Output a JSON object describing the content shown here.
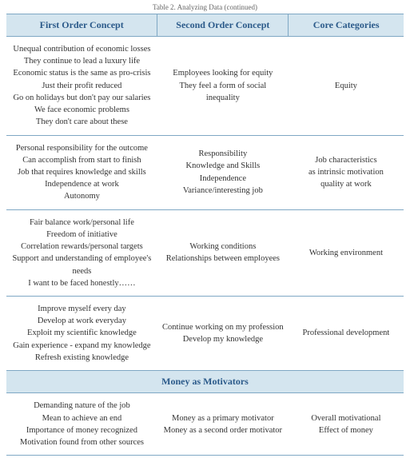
{
  "caption": "Table 2. Analyzing Data (continued)",
  "headers": [
    "First Order Concept",
    "Second Order Concept",
    "Core Categories"
  ],
  "rows": [
    {
      "c1": [
        "Unequal contribution of economic losses",
        "They continue to lead a luxury life",
        "Economic status is the same as pro-crisis",
        "Just their profit reduced",
        "Go on holidays but don't pay our salaries",
        "We face economic problems",
        "They don't care about these"
      ],
      "c2": [
        "Employees looking for equity",
        "They feel a form of social inequality"
      ],
      "c3": [
        "Equity"
      ]
    },
    {
      "c1": [
        "Personal responsibility for the outcome",
        "Can accomplish from start to finish",
        "Job that requires knowledge and skills",
        "Independence at work",
        "Autonomy"
      ],
      "c2": [
        "Responsibility",
        "Knowledge and Skills",
        "Independence",
        "Variance/interesting job"
      ],
      "c3": [
        "Job characteristics",
        "as intrinsic motivation",
        "quality at work"
      ]
    },
    {
      "c1": [
        "Fair balance work/personal life",
        "Freedom of initiative",
        "Correlation rewards/personal targets",
        "Support and understanding of employee's",
        "needs",
        "I want to be faced honestly……"
      ],
      "c2": [
        "Working conditions",
        "Relationships between employees"
      ],
      "c3": [
        "Working environment"
      ]
    },
    {
      "c1": [
        "Improve myself every day",
        "Develop at work everyday",
        "Exploit my scientific knowledge",
        "Gain experience - expand my knowledge",
        "Refresh existing knowledge"
      ],
      "c2": [
        "Continue working on my profession",
        "Develop my knowledge"
      ],
      "c3": [
        "Professional development"
      ]
    }
  ],
  "section": "Money as Motivators",
  "rows2": [
    {
      "c1": [
        "Demanding nature of the job",
        "Mean to achieve an end",
        "Importance of money recognized",
        "Motivation found from other sources"
      ],
      "c2": [
        "Money as a primary motivator",
        "Money as a second order motivator"
      ],
      "c3": [
        "Overall motivational",
        "Effect of money"
      ]
    }
  ],
  "colors": {
    "header_bg": "#d4e5ef",
    "header_fg": "#2b5a8a",
    "border": "#7fa8c4",
    "text": "#333333",
    "background": "#ffffff"
  },
  "typography": {
    "header_fontsize": 12,
    "cell_fontsize": 10.5,
    "caption_fontsize": 9,
    "font_family": "Georgia"
  }
}
